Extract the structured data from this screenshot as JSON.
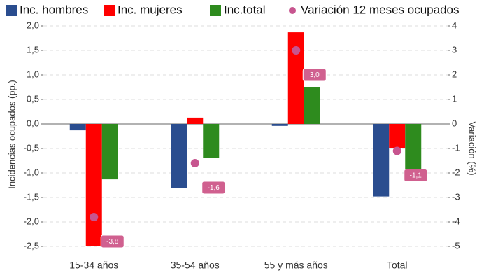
{
  "chart_data": {
    "type": "bar",
    "categories": [
      "15-34 años",
      "35-54 años",
      "55 y más años",
      "Total"
    ],
    "series": [
      {
        "name": "Inc. hombres",
        "color": "#2a4d8f",
        "values": [
          -0.13,
          -1.3,
          -0.04,
          -1.48
        ]
      },
      {
        "name": "Inc. mujeres",
        "color": "#ff0000",
        "values": [
          -2.5,
          0.13,
          1.87,
          -0.5
        ]
      },
      {
        "name": "Inc.total",
        "color": "#2e8b1e",
        "values": [
          -1.13,
          -0.7,
          0.75,
          -0.92
        ]
      },
      {
        "name": "Variación 12 meses ocupados",
        "color": "#c7558f",
        "type": "scatter",
        "axis": "y2",
        "values": [
          -3.8,
          -1.6,
          3.0,
          -1.1
        ],
        "value_labels": [
          "-3,8",
          "-1,6",
          "3,0",
          "-1,1"
        ]
      }
    ],
    "ylabel": "Incidencias ocupados (pp.)",
    "y2label": "Variación (%)",
    "ylim": [
      -2.5,
      2.0
    ],
    "yticks": [
      {
        "value": -2.5,
        "label": "-2,5"
      },
      {
        "value": -2.0,
        "label": "-2,0"
      },
      {
        "value": -1.5,
        "label": "-1,5"
      },
      {
        "value": -1.0,
        "label": "-1,0"
      },
      {
        "value": -0.5,
        "label": "-0,5"
      },
      {
        "value": 0,
        "label": "0,0"
      },
      {
        "value": 0.5,
        "label": "0,5"
      },
      {
        "value": 1.0,
        "label": "1,0"
      },
      {
        "value": 1.5,
        "label": "1,5"
      },
      {
        "value": 2.0,
        "label": "2,0"
      }
    ],
    "y2lim": [
      -5,
      4
    ],
    "y2ticks": [
      -5,
      -4,
      -3,
      -2,
      -1,
      0,
      1,
      2,
      3,
      4
    ],
    "grid": true,
    "legend": "top"
  }
}
